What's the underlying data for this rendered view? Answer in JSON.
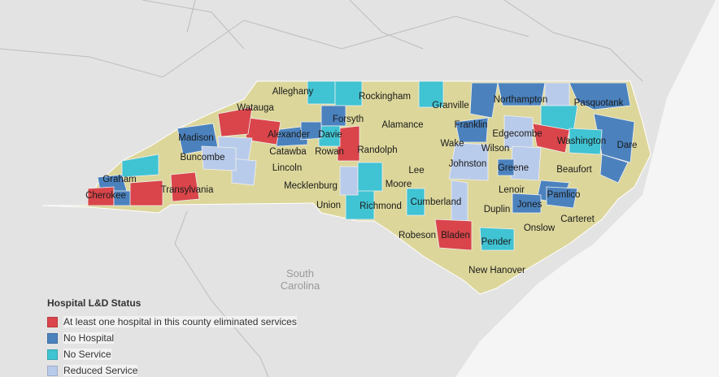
{
  "colors": {
    "background_land": "#e3e3e3",
    "background_water": "#f5f5f5",
    "borders": "#c8c8c8",
    "default_county": "#dcd69a",
    "eliminated": "#d9454a",
    "no_hospital": "#4b82be",
    "no_service": "#40c3d2",
    "reduced": "#b9cbea"
  },
  "region_labels": [
    {
      "text_line1": "South",
      "text_line2": "Carolina"
    }
  ],
  "county_labels": [
    "Alleghany",
    "Rockingham",
    "Watauga",
    "Granville",
    "Northampton",
    "Pasquotank",
    "Forsyth",
    "Alamance",
    "Franklin",
    "Edgecombe",
    "Madison",
    "Alexander",
    "Davie",
    "Washington",
    "Dare",
    "Catawba",
    "Rowan",
    "Randolph",
    "Wake",
    "Wilson",
    "Buncombe",
    "Lincoln",
    "Johnston",
    "Greene",
    "Beaufort",
    "Graham",
    "Mecklenburg",
    "Lee",
    "Moore",
    "Pamlico",
    "Cherokee",
    "Transylvania",
    "Cumberland",
    "Lenoir",
    "Jones",
    "Union",
    "Richmond",
    "Duplin",
    "Carteret",
    "Onslow",
    "Robeson",
    "Bladen",
    "Pender",
    "New Hanover"
  ],
  "legend": {
    "title": "Hospital L&D Status",
    "items": [
      {
        "label": "At least one hospital in this county eliminated services",
        "color": "#d9454a"
      },
      {
        "label": "No Hospital",
        "color": "#4b82be"
      },
      {
        "label": "No Service",
        "color": "#40c3d2"
      },
      {
        "label": "Reduced Service",
        "color": "#b9cbea"
      }
    ]
  }
}
